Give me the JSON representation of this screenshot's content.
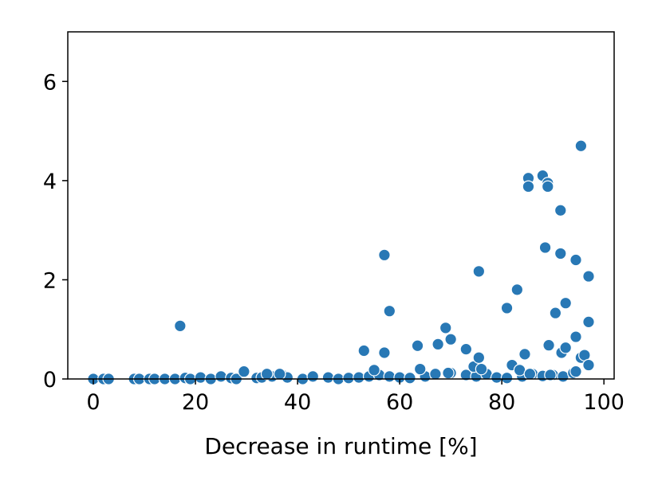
{
  "chart_data": {
    "type": "scatter",
    "title": "",
    "xlabel": "Decrease in runtime [%]",
    "ylabel": "",
    "xlim": [
      -5,
      102
    ],
    "ylim": [
      0,
      7
    ],
    "xticks": [
      0,
      20,
      40,
      60,
      80,
      100
    ],
    "yticks": [
      0,
      2,
      4,
      6
    ],
    "grid": false,
    "legend": "none",
    "marker_color": "#2878b5",
    "marker_edge_color": "#ffffff",
    "series": [
      {
        "points": [
          [
            0,
            0.0
          ],
          [
            2,
            0.0
          ],
          [
            3,
            0.0
          ],
          [
            8,
            0.0
          ],
          [
            9,
            0.0
          ],
          [
            11,
            0.0
          ],
          [
            12,
            0.0
          ],
          [
            14,
            0.0
          ],
          [
            16,
            0.0
          ],
          [
            18,
            0.02
          ],
          [
            19,
            0.0
          ],
          [
            21,
            0.03
          ],
          [
            23,
            0.0
          ],
          [
            25,
            0.05
          ],
          [
            27,
            0.02
          ],
          [
            28,
            0.0
          ],
          [
            32,
            0.02
          ],
          [
            33,
            0.03
          ],
          [
            35,
            0.05
          ],
          [
            37,
            0.08
          ],
          [
            38,
            0.03
          ],
          [
            41,
            0.0
          ],
          [
            43,
            0.05
          ],
          [
            46,
            0.03
          ],
          [
            48,
            0.0
          ],
          [
            50,
            0.02
          ],
          [
            52,
            0.03
          ],
          [
            54,
            0.05
          ],
          [
            56,
            0.08
          ],
          [
            58,
            0.05
          ],
          [
            60,
            0.03
          ],
          [
            62,
            0.02
          ],
          [
            65,
            0.05
          ],
          [
            67,
            0.1
          ],
          [
            70,
            0.12
          ],
          [
            73,
            0.08
          ],
          [
            75,
            0.05
          ],
          [
            77,
            0.1
          ],
          [
            79,
            0.03
          ],
          [
            81,
            0.02
          ],
          [
            84,
            0.05
          ],
          [
            86,
            0.1
          ],
          [
            88,
            0.06
          ],
          [
            90,
            0.08
          ],
          [
            92,
            0.05
          ],
          [
            94,
            0.12
          ],
          [
            17,
            1.07
          ],
          [
            29.5,
            0.15
          ],
          [
            34,
            0.1
          ],
          [
            36.5,
            0.1
          ],
          [
            53,
            0.57
          ],
          [
            55,
            0.18
          ],
          [
            57,
            0.53
          ],
          [
            57,
            2.5
          ],
          [
            58,
            1.37
          ],
          [
            63.5,
            0.67
          ],
          [
            64,
            0.2
          ],
          [
            67.5,
            0.7
          ],
          [
            69,
            1.03
          ],
          [
            69.5,
            0.12
          ],
          [
            70,
            0.8
          ],
          [
            73,
            0.6
          ],
          [
            74.5,
            0.25
          ],
          [
            75.5,
            2.17
          ],
          [
            75.5,
            0.43
          ],
          [
            76,
            0.2
          ],
          [
            81,
            1.43
          ],
          [
            82,
            0.28
          ],
          [
            83,
            1.8
          ],
          [
            83.5,
            0.18
          ],
          [
            84.5,
            0.5
          ],
          [
            85.2,
            4.05
          ],
          [
            85.2,
            3.88
          ],
          [
            85.5,
            0.1
          ],
          [
            88,
            4.1
          ],
          [
            88.5,
            2.65
          ],
          [
            89,
            3.95
          ],
          [
            89,
            3.88
          ],
          [
            89.2,
            0.68
          ],
          [
            89.5,
            0.08
          ],
          [
            90.5,
            1.33
          ],
          [
            91.5,
            3.4
          ],
          [
            91.5,
            2.53
          ],
          [
            91.7,
            0.53
          ],
          [
            92.5,
            1.53
          ],
          [
            92.5,
            0.63
          ],
          [
            94.5,
            2.4
          ],
          [
            94.5,
            0.85
          ],
          [
            94.5,
            0.15
          ],
          [
            95.5,
            4.7
          ],
          [
            95.5,
            0.43
          ],
          [
            96.2,
            0.48
          ],
          [
            97,
            2.07
          ],
          [
            97,
            1.15
          ],
          [
            97,
            0.28
          ]
        ]
      }
    ]
  }
}
